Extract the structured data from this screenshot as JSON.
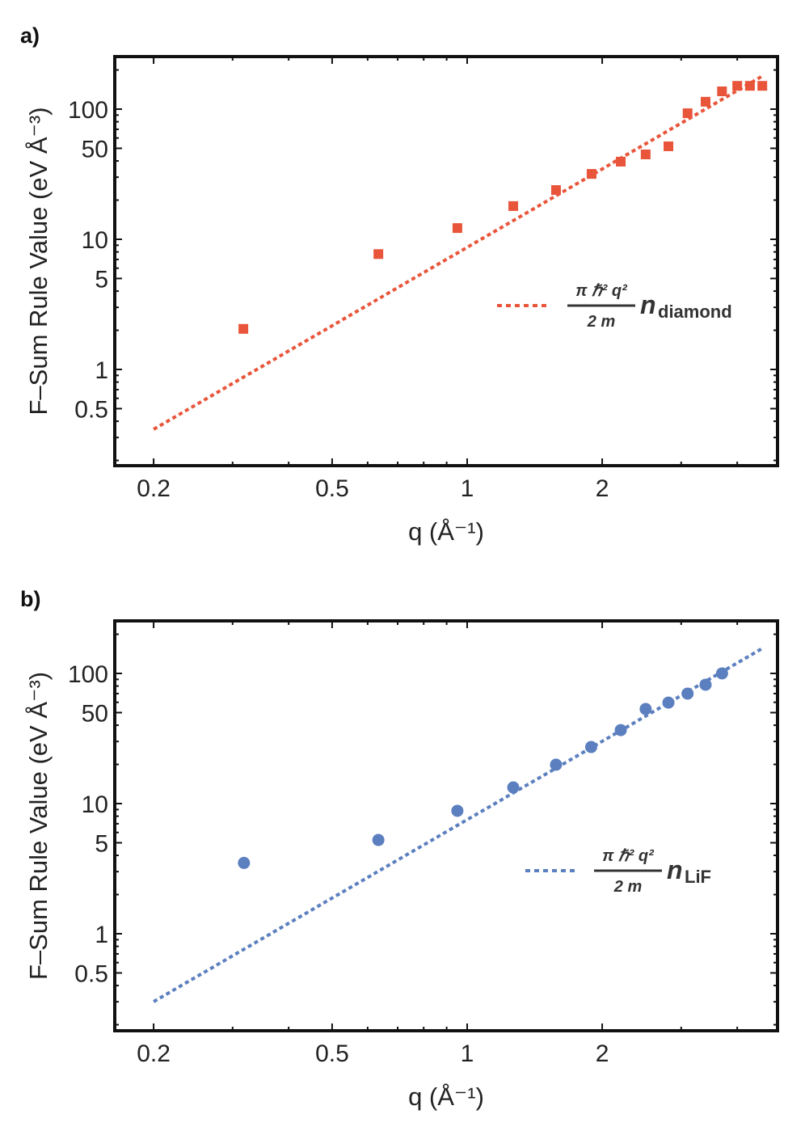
{
  "chart_data": [
    {
      "panel_label": "a)",
      "type": "scatter",
      "xlabel": "q (Å⁻¹)",
      "ylabel": "F–Sum Rule Value (eV Å⁻³)",
      "x_scale": "log",
      "y_scale": "log",
      "xlim": [
        0.164,
        4.92
      ],
      "ylim": [
        0.182,
        253
      ],
      "x_ticks": [
        0.2,
        0.5,
        1,
        2
      ],
      "x_tick_labels": [
        "0.2",
        "0.5",
        "1",
        "2"
      ],
      "y_ticks": [
        0.5,
        1,
        5,
        10,
        50,
        100
      ],
      "y_tick_labels": [
        "0.5",
        "1",
        "5",
        "10",
        "50",
        "100"
      ],
      "grid": false,
      "points": {
        "marker": "square",
        "color": "#E8553A",
        "x": [
          0.317,
          0.634,
          0.951,
          1.267,
          1.578,
          1.894,
          2.2,
          2.5,
          2.81,
          3.1,
          3.4,
          3.7,
          4.0,
          4.27,
          4.55
        ],
        "y": [
          2.05,
          7.7,
          12.2,
          18.0,
          23.9,
          31.8,
          39.5,
          44.9,
          51.8,
          93,
          114,
          137,
          151,
          151,
          151
        ]
      },
      "line": {
        "style": "dotted",
        "color": "#E8553A",
        "x_range": [
          0.2,
          4.55
        ],
        "coefficient": 8.67,
        "exponent": 2
      },
      "legend": {
        "placement": "right",
        "numerator": "π ℏ² q²",
        "denominator": "2 m",
        "symbol": "n",
        "subscript": "diamond"
      }
    },
    {
      "panel_label": "b)",
      "type": "scatter",
      "xlabel": "q (Å⁻¹)",
      "ylabel": "F–Sum Rule Value (eV Å⁻³)",
      "x_scale": "log",
      "y_scale": "log",
      "xlim": [
        0.164,
        4.92
      ],
      "ylim": [
        0.182,
        253
      ],
      "x_ticks": [
        0.2,
        0.5,
        1,
        2
      ],
      "x_tick_labels": [
        "0.2",
        "0.5",
        "1",
        "2"
      ],
      "y_ticks": [
        0.5,
        1,
        5,
        10,
        50,
        100
      ],
      "y_tick_labels": [
        "0.5",
        "1",
        "5",
        "10",
        "50",
        "100"
      ],
      "grid": false,
      "points": {
        "marker": "circle",
        "color": "#5B7FBF",
        "x": [
          0.318,
          0.634,
          0.951,
          1.267,
          1.578,
          1.89,
          2.2,
          2.5,
          2.81,
          3.1,
          3.4,
          3.7
        ],
        "y": [
          3.5,
          5.25,
          8.8,
          13.3,
          19.9,
          27.2,
          36.7,
          53.3,
          59.7,
          70.0,
          81.9,
          100
        ]
      },
      "line": {
        "style": "dotted",
        "color": "#5B7FBF",
        "x_range": [
          0.2,
          4.55
        ],
        "coefficient": 7.52,
        "exponent": 2
      },
      "legend": {
        "placement": "right",
        "numerator": "π ℏ² q²",
        "denominator": "2 m",
        "symbol": "n",
        "subscript": "LiF"
      }
    }
  ]
}
